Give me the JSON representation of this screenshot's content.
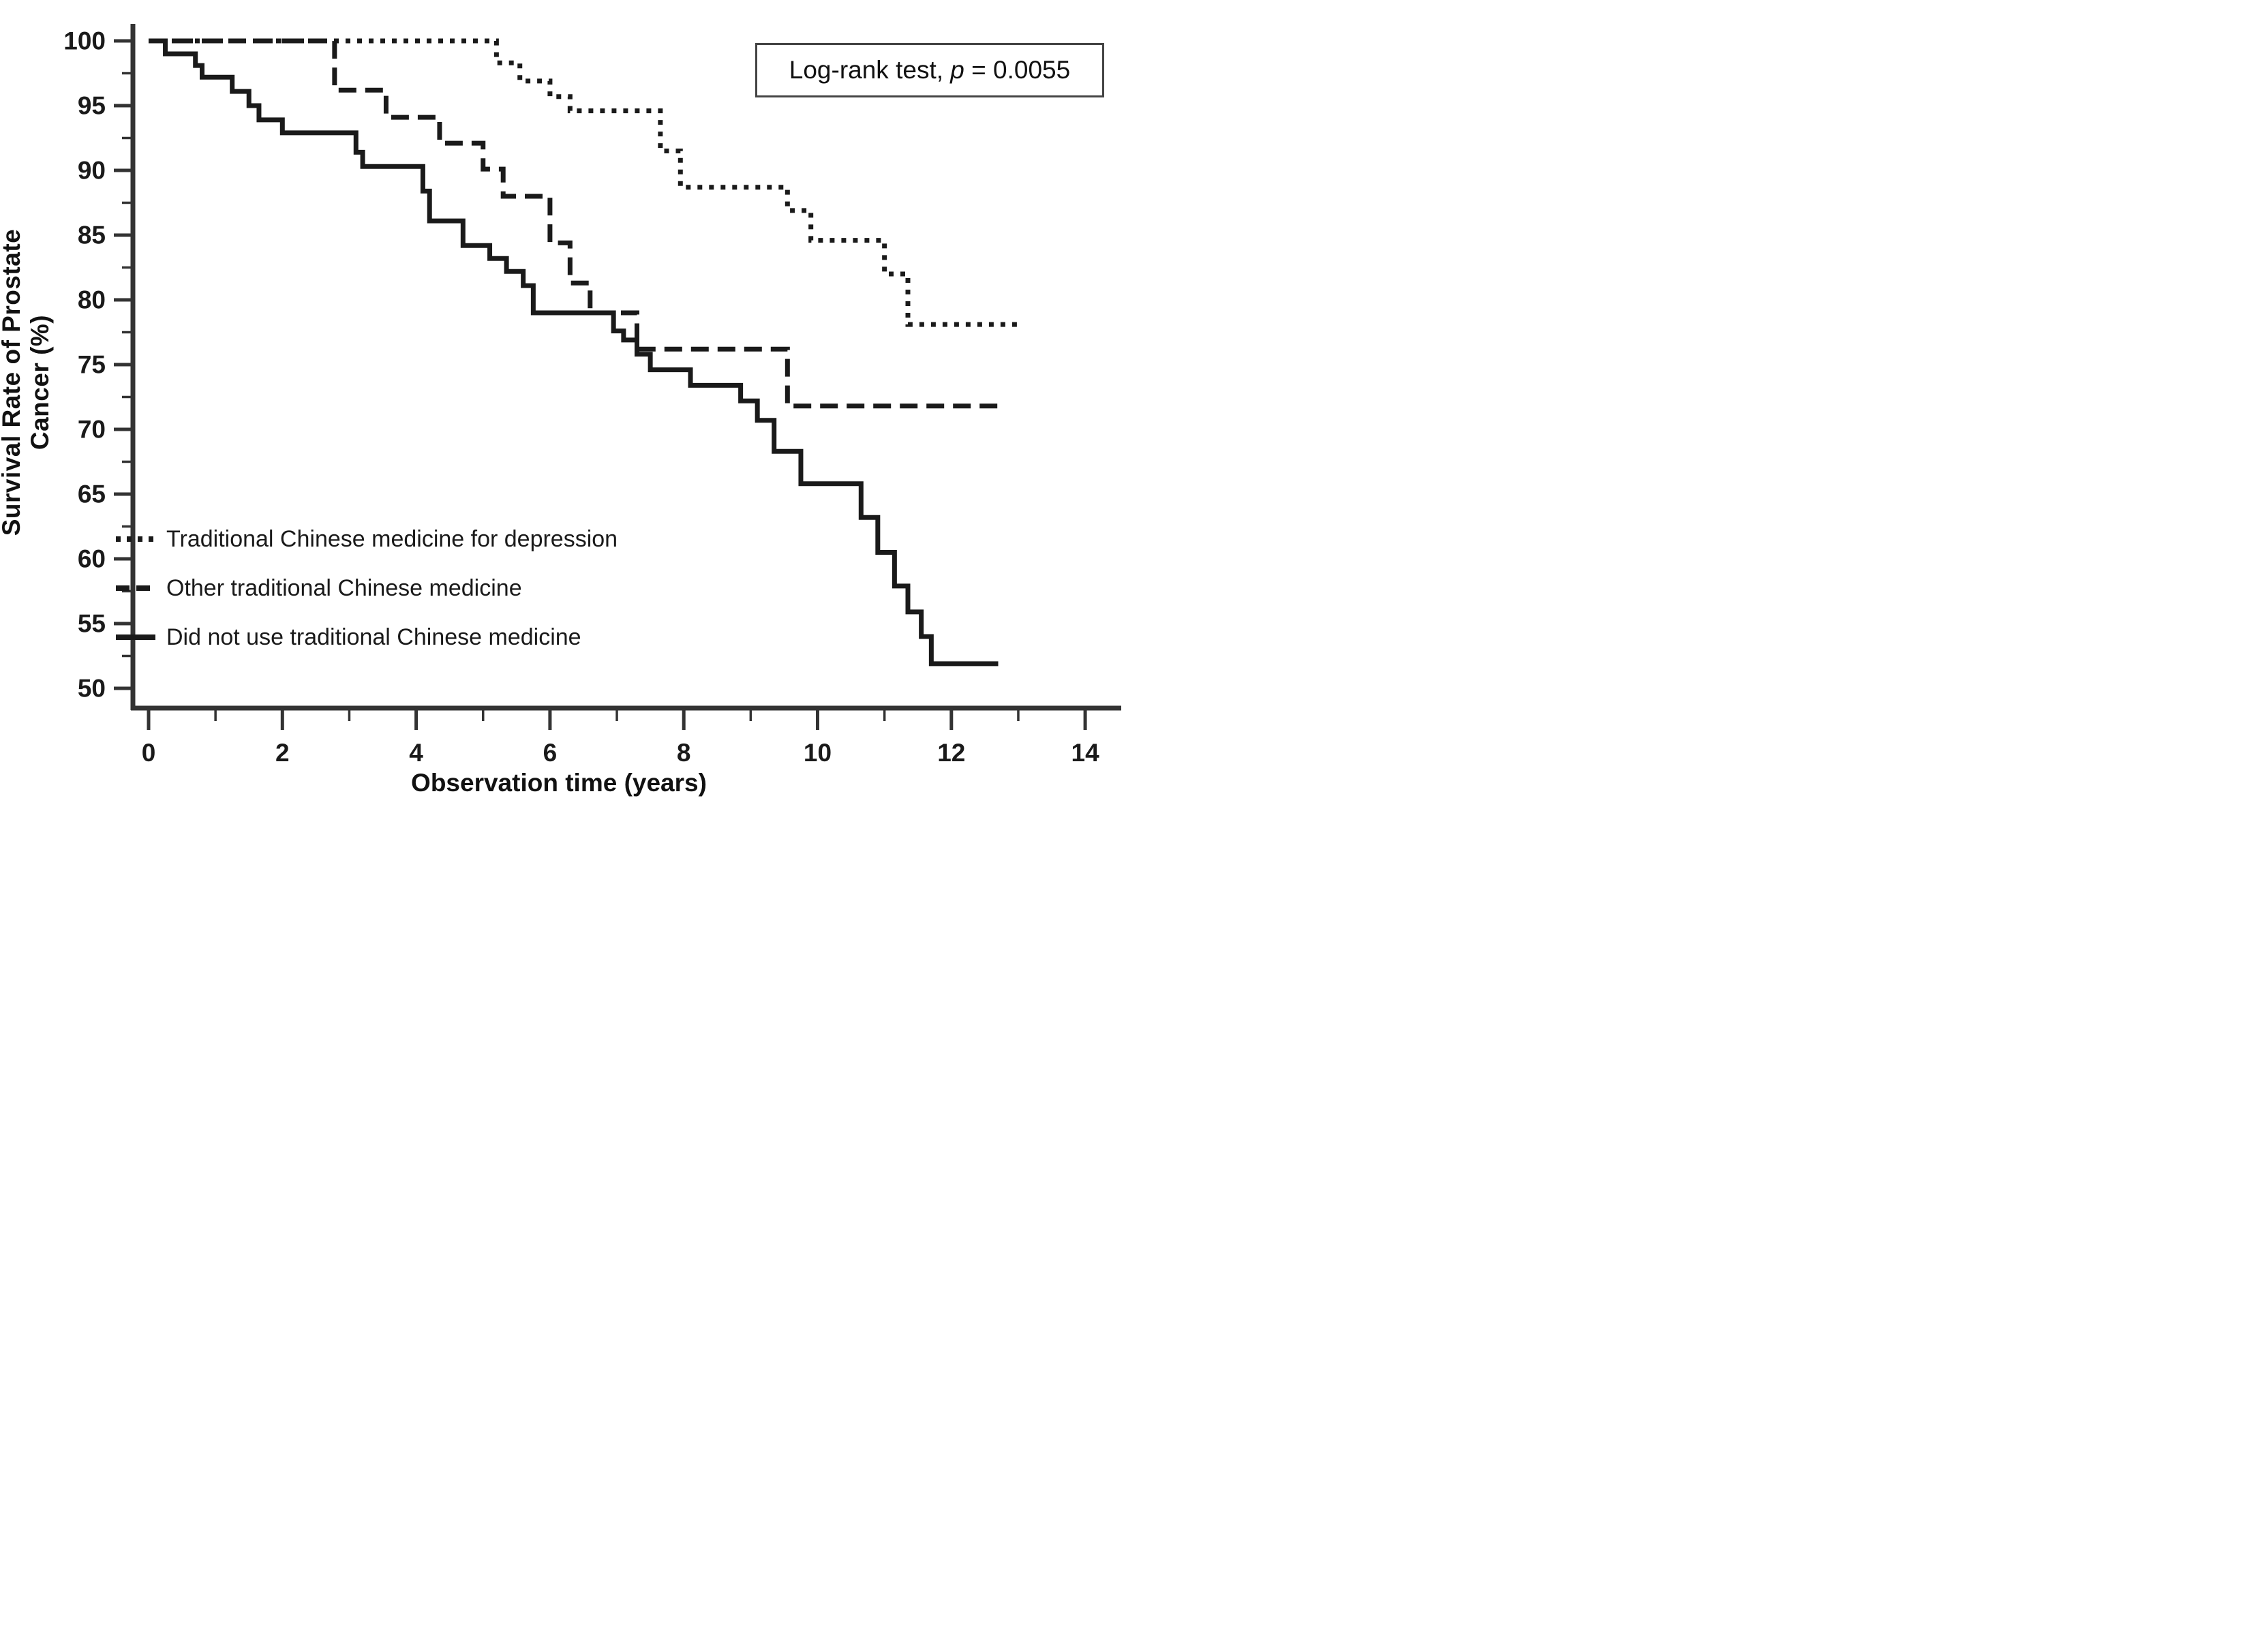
{
  "figure": {
    "background": "#ffffff",
    "ink_color": "#1a1a1a",
    "axis_color": "#333333"
  },
  "annotation": {
    "prefix": "Log-rank test, ",
    "stat_symbol": "p",
    "value_text": " = 0.0055"
  },
  "axes": {
    "x": {
      "title": "Observation time (years)",
      "min": 0,
      "max": 14,
      "major_ticks": [
        0,
        2,
        4,
        6,
        8,
        10,
        12,
        14
      ],
      "minor_ticks": [
        1,
        3,
        5,
        7,
        9,
        11,
        13
      ]
    },
    "y": {
      "title": "Survival Rate of  Prostate Cancer (%)",
      "min": 50,
      "max": 100,
      "major_ticks": [
        100,
        95,
        90,
        85,
        80,
        75,
        70,
        65,
        60,
        55,
        50
      ],
      "minor_ticks": [
        97.5,
        92.5,
        87.5,
        82.5,
        77.5,
        72.5,
        67.5,
        62.5,
        57.5,
        52.5
      ]
    }
  },
  "legend": {
    "position": "inside-lower-left",
    "items": [
      {
        "label": "Traditional Chinese medicine for depression",
        "line_style": "dotted"
      },
      {
        "label": "Other traditional Chinese medicine",
        "line_style": "dashed"
      },
      {
        "label": "Did not use traditional Chinese medicine",
        "line_style": "solid"
      }
    ]
  },
  "chart_data": {
    "type": "line",
    "subtype": "kaplan-meier-step",
    "title": "",
    "xlabel": "Observation time (years)",
    "ylabel": "Survival Rate of  Prostate Cancer (%)",
    "xlim": [
      0,
      14.6
    ],
    "ylim": [
      48.5,
      101.5
    ],
    "grid": false,
    "legend_position": "lower-left-inside",
    "annotation": "Log-rank test, p = 0.0055",
    "series": [
      {
        "name": "Traditional Chinese medicine for depression",
        "style": "dotted",
        "points": [
          [
            0,
            100
          ],
          [
            5.2,
            98.3
          ],
          [
            5.55,
            96.9
          ],
          [
            6.0,
            95.7
          ],
          [
            6.3,
            94.6
          ],
          [
            7.65,
            91.5
          ],
          [
            7.95,
            88.7
          ],
          [
            9.55,
            86.9
          ],
          [
            9.9,
            84.6
          ],
          [
            11.0,
            82.0
          ],
          [
            11.35,
            78.1
          ]
        ],
        "end_x": 13.0
      },
      {
        "name": "Other traditional Chinese medicine",
        "style": "dashed",
        "points": [
          [
            0,
            100
          ],
          [
            2.78,
            96.2
          ],
          [
            3.55,
            94.1
          ],
          [
            4.35,
            92.1
          ],
          [
            5.0,
            90.1
          ],
          [
            5.3,
            88.0
          ],
          [
            6.0,
            84.4
          ],
          [
            6.3,
            81.3
          ],
          [
            6.6,
            79.0
          ],
          [
            7.3,
            76.2
          ],
          [
            9.55,
            71.8
          ]
        ],
        "end_x": 12.7
      },
      {
        "name": "Did not use traditional Chinese medicine",
        "style": "solid",
        "points": [
          [
            0,
            100
          ],
          [
            0.25,
            99.0
          ],
          [
            0.7,
            98.1
          ],
          [
            0.8,
            97.2
          ],
          [
            1.25,
            96.1
          ],
          [
            1.5,
            95.0
          ],
          [
            1.65,
            93.9
          ],
          [
            2.0,
            92.9
          ],
          [
            3.1,
            91.4
          ],
          [
            3.2,
            90.3
          ],
          [
            4.1,
            88.4
          ],
          [
            4.2,
            86.1
          ],
          [
            4.7,
            84.2
          ],
          [
            5.1,
            83.2
          ],
          [
            5.35,
            82.2
          ],
          [
            5.6,
            81.1
          ],
          [
            5.75,
            79.0
          ],
          [
            6.95,
            77.6
          ],
          [
            7.1,
            76.9
          ],
          [
            7.3,
            75.8
          ],
          [
            7.5,
            74.6
          ],
          [
            8.1,
            73.4
          ],
          [
            8.85,
            72.2
          ],
          [
            9.1,
            70.7
          ],
          [
            9.35,
            68.3
          ],
          [
            9.75,
            65.8
          ],
          [
            10.65,
            63.2
          ],
          [
            10.9,
            60.5
          ],
          [
            11.15,
            57.9
          ],
          [
            11.35,
            55.9
          ],
          [
            11.55,
            54.0
          ],
          [
            11.7,
            51.9
          ]
        ],
        "end_x": 12.7
      }
    ]
  }
}
